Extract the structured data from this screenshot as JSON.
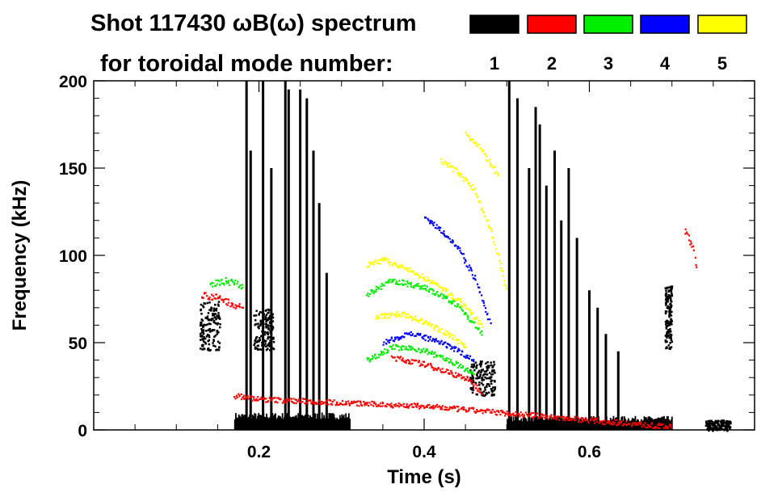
{
  "chart_data": {
    "type": "scatter",
    "title": "Shot 117430 ωB(ω) spectrum",
    "subtitle": "for toroidal mode number:",
    "xlabel": "Time (s)",
    "ylabel": "Frequency (kHz)",
    "xlim": [
      0.0,
      0.8
    ],
    "ylim": [
      0,
      200
    ],
    "xticks": [
      0.2,
      0.4,
      0.6
    ],
    "yticks": [
      0,
      50,
      100,
      150,
      200
    ],
    "grid": false,
    "legend_position": "top-right",
    "legend": [
      {
        "label": "1",
        "color": "#000000"
      },
      {
        "label": "2",
        "color": "#ff0000"
      },
      {
        "label": "3",
        "color": "#00ee00"
      },
      {
        "label": "4",
        "color": "#0000ff"
      },
      {
        "label": "5",
        "color": "#ffff00"
      }
    ],
    "series": [
      {
        "name": "n=1",
        "color": "#000000",
        "features": [
          {
            "kind": "band",
            "t0": 0.17,
            "t1": 0.31,
            "f0": 0,
            "f1": 10
          },
          {
            "kind": "band",
            "t0": 0.5,
            "t1": 0.7,
            "f0": 0,
            "f1": 8
          },
          {
            "kind": "blob",
            "t": 0.205,
            "f": 58,
            "dt": 0.012,
            "df": 12
          },
          {
            "kind": "blob",
            "t": 0.14,
            "f": 60,
            "dt": 0.012,
            "df": 14
          },
          {
            "kind": "blob",
            "t": 0.47,
            "f": 30,
            "dt": 0.015,
            "df": 10
          },
          {
            "kind": "blob",
            "t": 0.695,
            "f": 65,
            "dt": 0.004,
            "df": 18
          },
          {
            "kind": "blob",
            "t": 0.755,
            "f": 3,
            "dt": 0.015,
            "df": 3
          },
          {
            "kind": "spike",
            "t": 0.185,
            "f0": 0,
            "f1": 200
          },
          {
            "kind": "spike",
            "t": 0.19,
            "f0": 0,
            "f1": 160
          },
          {
            "kind": "spike",
            "t": 0.205,
            "f0": 0,
            "f1": 200
          },
          {
            "kind": "spike",
            "t": 0.215,
            "f0": 0,
            "f1": 150
          },
          {
            "kind": "spike",
            "t": 0.232,
            "f0": 0,
            "f1": 200
          },
          {
            "kind": "spike",
            "t": 0.236,
            "f0": 0,
            "f1": 195
          },
          {
            "kind": "spike",
            "t": 0.25,
            "f0": 0,
            "f1": 195
          },
          {
            "kind": "spike",
            "t": 0.258,
            "f0": 0,
            "f1": 190
          },
          {
            "kind": "spike",
            "t": 0.266,
            "f0": 0,
            "f1": 160
          },
          {
            "kind": "spike",
            "t": 0.273,
            "f0": 0,
            "f1": 130
          },
          {
            "kind": "spike",
            "t": 0.282,
            "f0": 0,
            "f1": 90
          },
          {
            "kind": "spike",
            "t": 0.503,
            "f0": 0,
            "f1": 200
          },
          {
            "kind": "spike",
            "t": 0.513,
            "f0": 0,
            "f1": 190
          },
          {
            "kind": "spike",
            "t": 0.527,
            "f0": 0,
            "f1": 150
          },
          {
            "kind": "spike",
            "t": 0.535,
            "f0": 0,
            "f1": 185
          },
          {
            "kind": "spike",
            "t": 0.54,
            "f0": 0,
            "f1": 175
          },
          {
            "kind": "spike",
            "t": 0.548,
            "f0": 0,
            "f1": 140
          },
          {
            "kind": "spike",
            "t": 0.558,
            "f0": 0,
            "f1": 160
          },
          {
            "kind": "spike",
            "t": 0.566,
            "f0": 0,
            "f1": 120
          },
          {
            "kind": "spike",
            "t": 0.575,
            "f0": 0,
            "f1": 150
          },
          {
            "kind": "spike",
            "t": 0.585,
            "f0": 0,
            "f1": 110
          },
          {
            "kind": "spike",
            "t": 0.6,
            "f0": 0,
            "f1": 80
          },
          {
            "kind": "spike",
            "t": 0.61,
            "f0": 0,
            "f1": 70
          },
          {
            "kind": "spike",
            "t": 0.62,
            "f0": 0,
            "f1": 55
          },
          {
            "kind": "spike",
            "t": 0.635,
            "f0": 0,
            "f1": 45
          }
        ]
      },
      {
        "name": "n=2",
        "color": "#ff0000",
        "features": [
          {
            "kind": "curve",
            "pts": [
              [
                0.17,
                20
              ],
              [
                0.2,
                18
              ],
              [
                0.25,
                17
              ],
              [
                0.3,
                16
              ],
              [
                0.4,
                14
              ],
              [
                0.5,
                10
              ],
              [
                0.6,
                6
              ],
              [
                0.7,
                2
              ]
            ],
            "jitter": 1.5
          },
          {
            "kind": "curve",
            "pts": [
              [
                0.36,
                42
              ],
              [
                0.4,
                38
              ],
              [
                0.45,
                30
              ],
              [
                0.47,
                22
              ]
            ],
            "jitter": 1.5
          },
          {
            "kind": "curve",
            "pts": [
              [
                0.13,
                78
              ],
              [
                0.15,
                76
              ],
              [
                0.18,
                70
              ]
            ],
            "jitter": 2
          },
          {
            "kind": "curve",
            "pts": [
              [
                0.715,
                115
              ],
              [
                0.725,
                105
              ],
              [
                0.73,
                90
              ]
            ],
            "jitter": 2
          }
        ]
      },
      {
        "name": "n=3",
        "color": "#00ee00",
        "features": [
          {
            "kind": "curve",
            "pts": [
              [
                0.33,
                40
              ],
              [
                0.36,
                48
              ],
              [
                0.4,
                46
              ],
              [
                0.43,
                40
              ],
              [
                0.46,
                32
              ]
            ],
            "jitter": 1.5
          },
          {
            "kind": "curve",
            "pts": [
              [
                0.33,
                78
              ],
              [
                0.36,
                86
              ],
              [
                0.4,
                82
              ],
              [
                0.44,
                72
              ],
              [
                0.47,
                55
              ]
            ],
            "jitter": 1.5
          },
          {
            "kind": "curve",
            "pts": [
              [
                0.14,
                84
              ],
              [
                0.16,
                86
              ],
              [
                0.18,
                83
              ]
            ],
            "jitter": 2
          }
        ]
      },
      {
        "name": "n=4",
        "color": "#0000ff",
        "features": [
          {
            "kind": "curve",
            "pts": [
              [
                0.35,
                50
              ],
              [
                0.38,
                56
              ],
              [
                0.41,
                52
              ],
              [
                0.44,
                46
              ],
              [
                0.46,
                40
              ]
            ],
            "jitter": 1.5
          },
          {
            "kind": "curve",
            "pts": [
              [
                0.4,
                122
              ],
              [
                0.42,
                115
              ],
              [
                0.44,
                105
              ],
              [
                0.46,
                88
              ],
              [
                0.48,
                60
              ]
            ],
            "jitter": 1.5
          }
        ]
      },
      {
        "name": "n=5",
        "color": "#ffff00",
        "features": [
          {
            "kind": "curve",
            "pts": [
              [
                0.33,
                95
              ],
              [
                0.35,
                98
              ],
              [
                0.38,
                92
              ],
              [
                0.41,
                85
              ],
              [
                0.44,
                75
              ],
              [
                0.47,
                60
              ]
            ],
            "jitter": 1.5
          },
          {
            "kind": "curve",
            "pts": [
              [
                0.34,
                65
              ],
              [
                0.37,
                67
              ],
              [
                0.4,
                62
              ],
              [
                0.43,
                55
              ],
              [
                0.45,
                48
              ]
            ],
            "jitter": 1.5
          },
          {
            "kind": "curve",
            "pts": [
              [
                0.42,
                155
              ],
              [
                0.44,
                148
              ],
              [
                0.46,
                138
              ],
              [
                0.48,
                115
              ],
              [
                0.5,
                80
              ]
            ],
            "jitter": 1.5
          },
          {
            "kind": "curve",
            "pts": [
              [
                0.45,
                170
              ],
              [
                0.47,
                160
              ],
              [
                0.49,
                145
              ]
            ],
            "jitter": 1.5
          }
        ]
      }
    ]
  }
}
